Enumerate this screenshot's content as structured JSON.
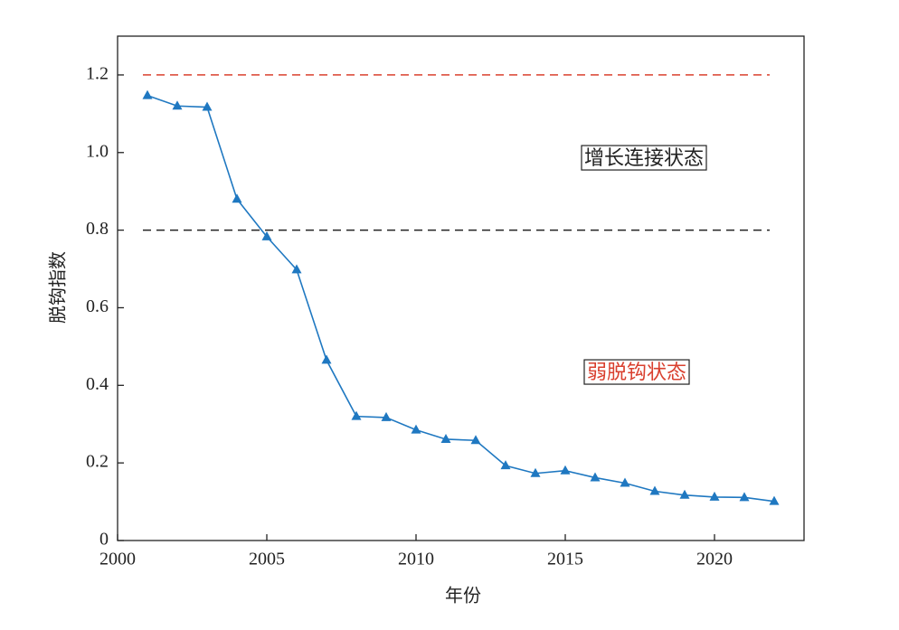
{
  "chart_data": {
    "type": "line",
    "x_label": "年份",
    "y_label": "脱钩指数",
    "x": [
      2001,
      2002,
      2003,
      2004,
      2005,
      2006,
      2007,
      2008,
      2009,
      2010,
      2011,
      2012,
      2013,
      2014,
      2015,
      2016,
      2017,
      2018,
      2019,
      2020,
      2021,
      2022
    ],
    "series": [
      {
        "color": "#1f78c1",
        "values": [
          1.147,
          1.12,
          1.117,
          0.88,
          0.783,
          0.698,
          0.465,
          0.32,
          0.317,
          0.285,
          0.261,
          0.258,
          0.193,
          0.173,
          0.18,
          0.162,
          0.148,
          0.127,
          0.117,
          0.112,
          0.111,
          0.101
        ]
      }
    ],
    "xlim": [
      2000,
      2023
    ],
    "xticks": [
      2000,
      2005,
      2010,
      2015,
      2020
    ],
    "ylim": [
      0,
      1.3
    ],
    "yticks": [
      0,
      0.2,
      0.4,
      0.6,
      0.8,
      {
        "value": 1,
        "label": "1.0"
      },
      1.2
    ],
    "reference_lines": [
      {
        "value": 1.2,
        "color": "#d9402f"
      },
      {
        "value": 0.8,
        "color": "#222222"
      }
    ],
    "annotations": [
      {
        "text": "增长连接状态",
        "color": "#222222"
      },
      {
        "text": "弱脱钩状态",
        "color": "#d9402f"
      }
    ]
  }
}
